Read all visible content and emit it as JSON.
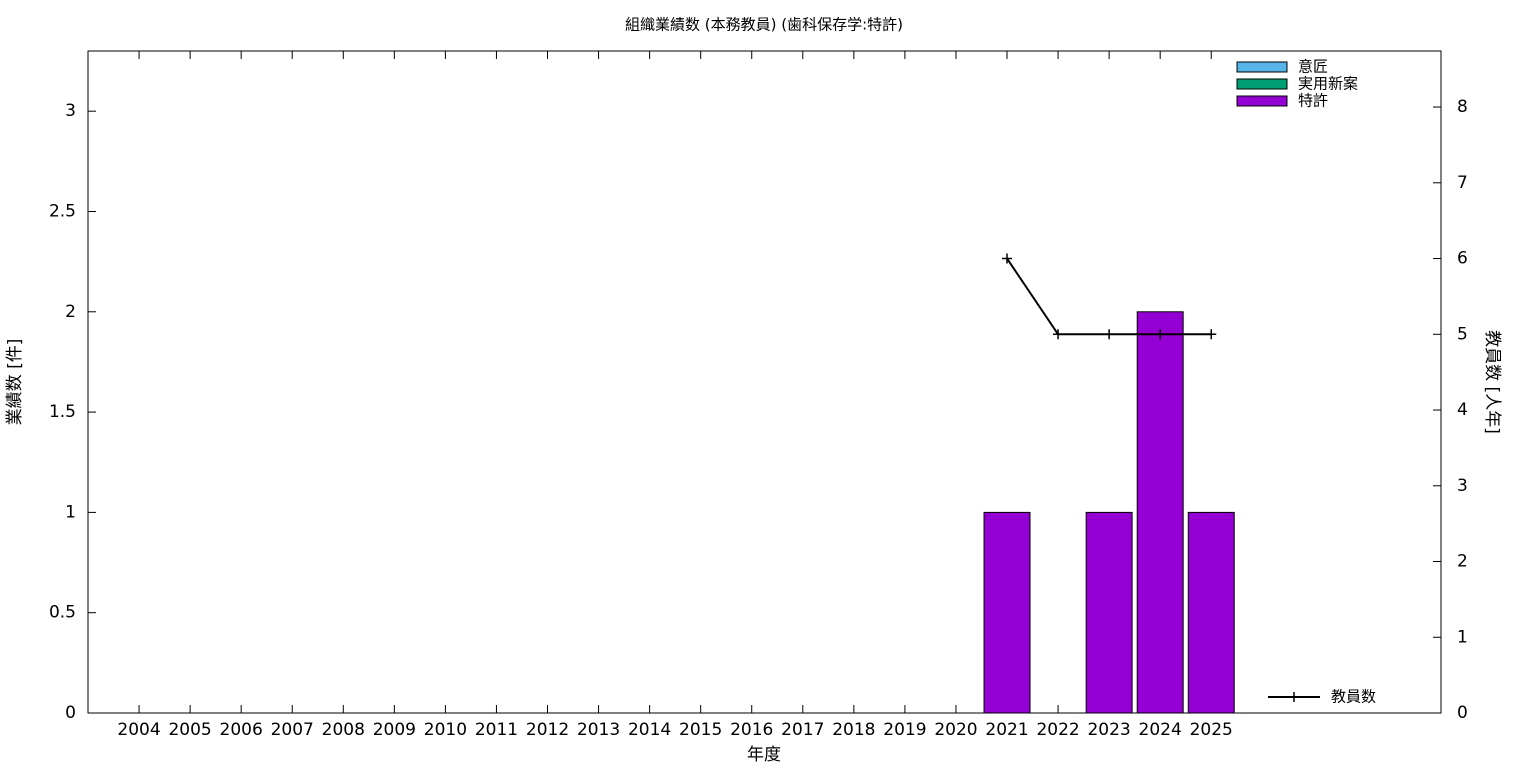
{
  "chart_data": {
    "type": "bar",
    "title": "組織業績数 (本務教員) (歯科保存学:特許)",
    "x_label": "年度",
    "y_label": "業績数 [件]",
    "y2_label": "教員数 [人年]",
    "categories": [
      "2004",
      "2005",
      "2006",
      "2007",
      "2008",
      "2009",
      "2010",
      "2011",
      "2012",
      "2013",
      "2014",
      "2015",
      "2016",
      "2017",
      "2018",
      "2019",
      "2020",
      "2021",
      "2022",
      "2023",
      "2024",
      "2025"
    ],
    "stacked": true,
    "series": [
      {
        "name": "意匠",
        "color": "#56b4e9",
        "values": [
          0,
          0,
          0,
          0,
          0,
          0,
          0,
          0,
          0,
          0,
          0,
          0,
          0,
          0,
          0,
          0,
          0,
          0,
          0,
          0,
          0,
          0
        ]
      },
      {
        "name": "実用新案",
        "color": "#009e73",
        "values": [
          0,
          0,
          0,
          0,
          0,
          0,
          0,
          0,
          0,
          0,
          0,
          0,
          0,
          0,
          0,
          0,
          0,
          0,
          0,
          0,
          0,
          0
        ]
      },
      {
        "name": "特許",
        "color": "#9400d3",
        "values": [
          0,
          0,
          0,
          0,
          0,
          0,
          0,
          0,
          0,
          0,
          0,
          0,
          0,
          0,
          0,
          0,
          0,
          1,
          0,
          1,
          2,
          1
        ]
      },
      {
        "name": "教員数",
        "type": "line",
        "axis": "y2",
        "color": "#000000",
        "values": [
          null,
          null,
          null,
          null,
          null,
          null,
          null,
          null,
          null,
          null,
          null,
          null,
          null,
          null,
          null,
          null,
          null,
          6,
          5,
          5,
          5,
          5
        ]
      }
    ],
    "ylim": [
      0,
      3.3
    ],
    "yticks": [
      0,
      0.5,
      1,
      1.5,
      2,
      2.5,
      3
    ],
    "y2lim": [
      0,
      8.74
    ],
    "y2ticks": [
      0,
      1,
      2,
      3,
      4,
      5,
      6,
      7,
      8
    ],
    "grid": false
  }
}
